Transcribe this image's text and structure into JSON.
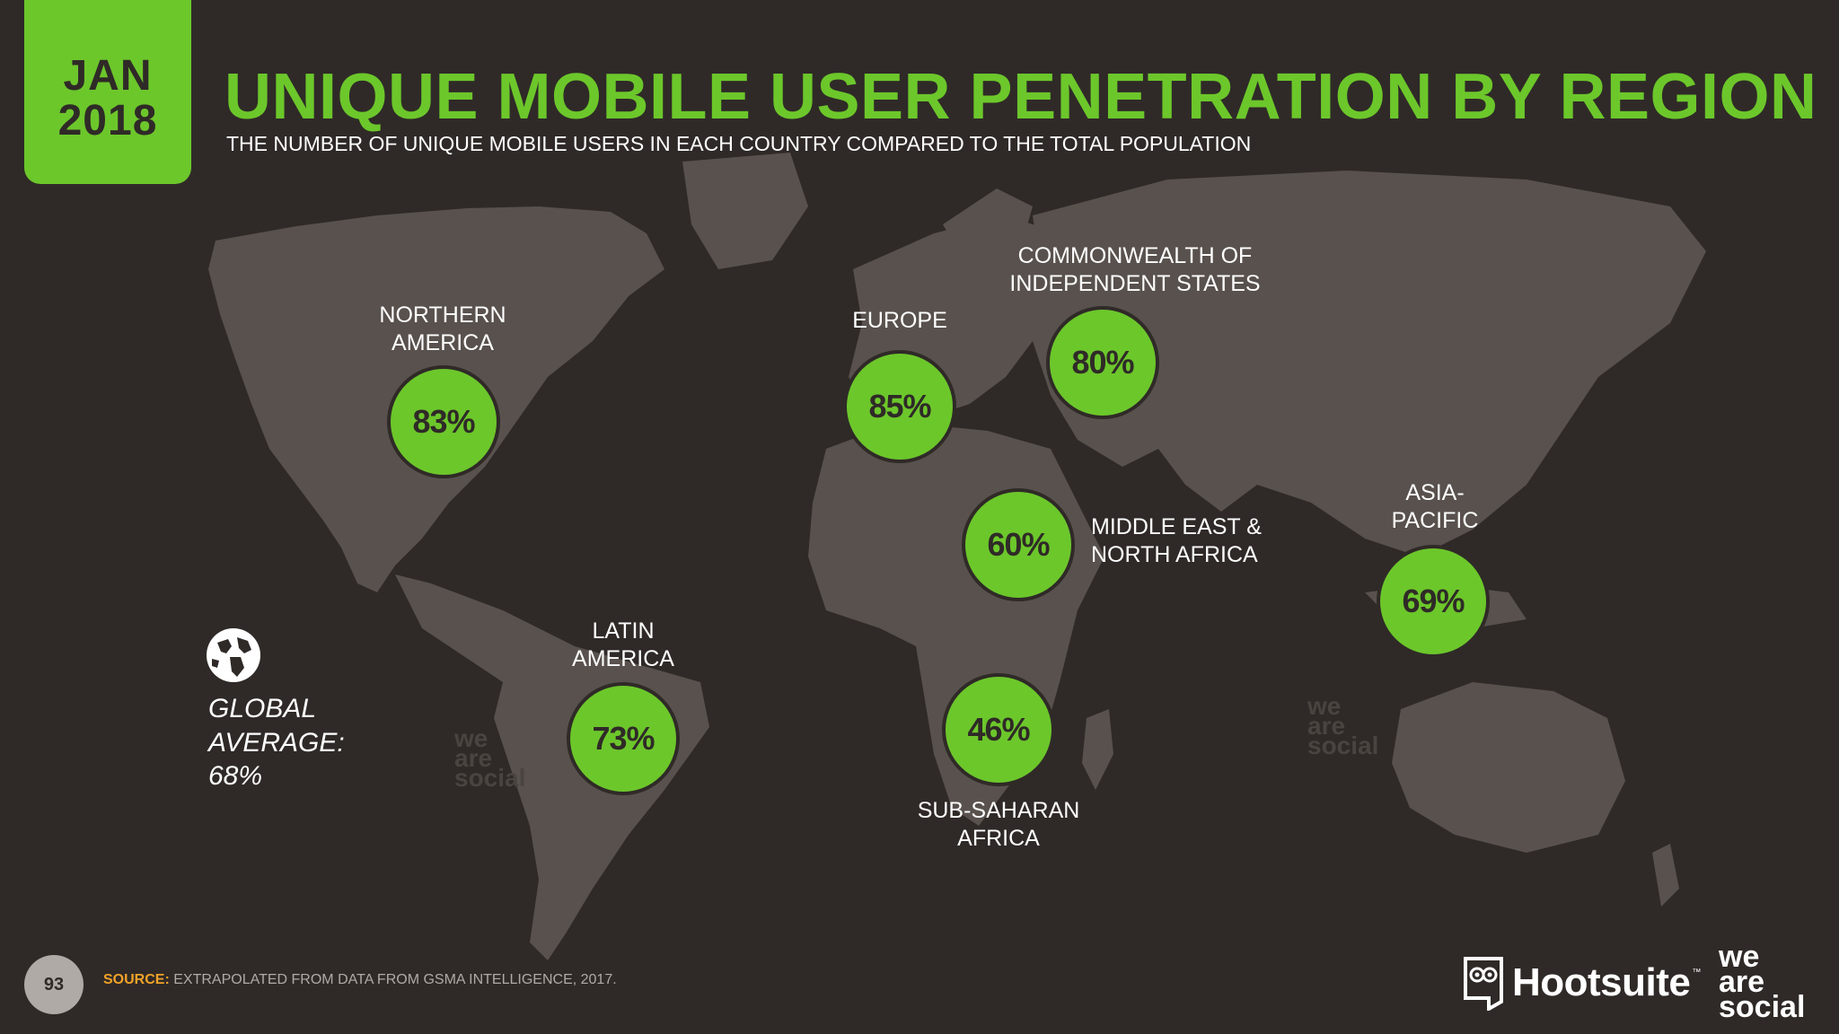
{
  "header": {
    "date_month": "JAN",
    "date_year": "2018",
    "title": "UNIQUE MOBILE USER PENETRATION BY REGION",
    "subtitle": "THE NUMBER OF UNIQUE MOBILE USERS IN EACH COUNTRY COMPARED TO THE TOTAL POPULATION"
  },
  "regions": [
    {
      "label_lines": [
        "NORTHERN",
        "AMERICA"
      ],
      "value": "83%"
    },
    {
      "label_lines": [
        "EUROPE"
      ],
      "value": "85%"
    },
    {
      "label_lines": [
        "COMMONWEALTH OF",
        "INDEPENDENT STATES"
      ],
      "value": "80%"
    },
    {
      "label_lines": [
        "MIDDLE EAST &",
        "NORTH AFRICA"
      ],
      "value": "60%"
    },
    {
      "label_lines": [
        "ASIA-",
        "PACIFIC"
      ],
      "value": "69%"
    },
    {
      "label_lines": [
        "LATIN",
        "AMERICA"
      ],
      "value": "73%"
    },
    {
      "label_lines": [
        "SUB-SAHARAN",
        "AFRICA"
      ],
      "value": "46%"
    }
  ],
  "global_average": {
    "lines": [
      "GLOBAL",
      "AVERAGE:",
      "68%"
    ],
    "icon": "globe-icon"
  },
  "watermarks": [
    "we\nare\nsocial",
    "we\nare\nsocial"
  ],
  "footer": {
    "page_number": "93",
    "source_label": "SOURCE:",
    "source_text": "EXTRAPOLATED FROM DATA FROM GSMA INTELLIGENCE, 2017.",
    "brand_hootsuite": "Hootsuite",
    "brand_tm": "™",
    "brand_wearesocial": "we\nare\nsocial"
  },
  "colors": {
    "background": "#2f2a27",
    "accent_green": "#6cc72b",
    "map_land": "#58514d",
    "source_label": "#f0a22a"
  }
}
